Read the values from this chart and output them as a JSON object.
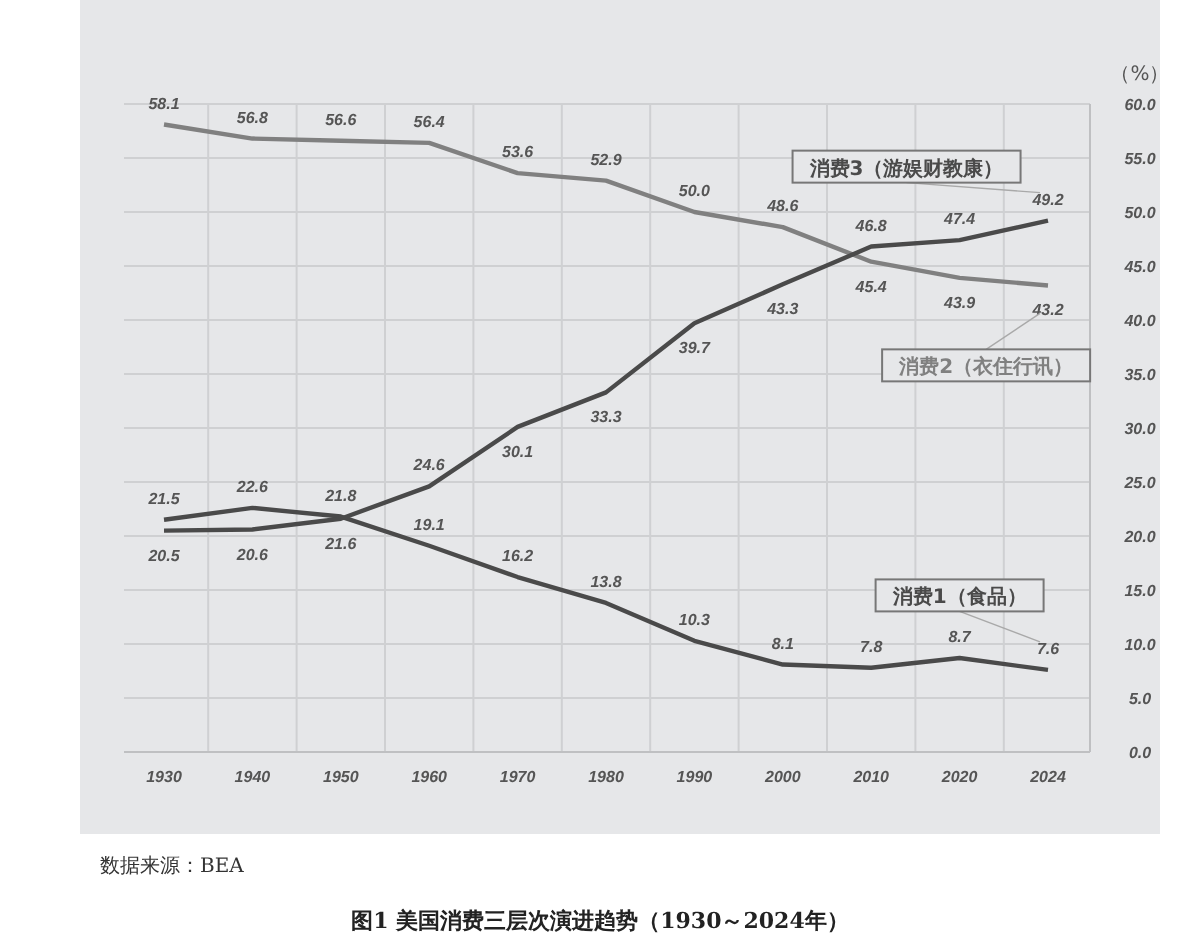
{
  "chart_data": {
    "type": "line",
    "title": "图1 美国消费三层次演进趋势（1930～2024年）",
    "ylabel": "（%）",
    "annotations": [
      "数据来源：BEA"
    ],
    "categories": [
      "1930",
      "1940",
      "1950",
      "1960",
      "1970",
      "1980",
      "1990",
      "2000",
      "2010",
      "2020",
      "2024"
    ],
    "series": [
      {
        "name": "消费1（食品）",
        "color": "#4a4a4a",
        "values": [
          21.5,
          22.6,
          21.8,
          19.1,
          16.2,
          13.8,
          10.3,
          8.1,
          7.8,
          8.7,
          7.6
        ],
        "value_labels": [
          "21.5",
          "22.6",
          "21.8",
          "19.1",
          "16.2",
          "13.8",
          "10.3",
          "8.1",
          "7.8",
          "8.7",
          "7.6"
        ]
      },
      {
        "name": "消费2（衣住行讯）",
        "color": "#808080",
        "values": [
          58.1,
          56.8,
          56.6,
          56.4,
          53.6,
          52.9,
          50.0,
          48.6,
          45.4,
          43.9,
          43.2
        ],
        "value_labels": [
          "58.1",
          "56.8",
          "56.6",
          "56.4",
          "53.6",
          "52.9",
          "50.0",
          "48.6",
          "45.4",
          "43.9",
          "43.2"
        ]
      },
      {
        "name": "消费3（游娱财教康）",
        "color": "#4a4a4a",
        "values": [
          20.5,
          20.6,
          21.6,
          24.6,
          30.1,
          33.3,
          39.7,
          43.3,
          46.8,
          47.4,
          49.2
        ],
        "value_labels": [
          "20.5",
          "20.6",
          "21.6",
          "24.6",
          "30.1",
          "33.3",
          "39.7",
          "43.3",
          "46.8",
          "47.4",
          "49.2"
        ]
      }
    ],
    "ylim": [
      0,
      60
    ],
    "yticks": [
      {
        "value": 0,
        "label": "0.0"
      },
      {
        "value": 5,
        "label": "5.0"
      },
      {
        "value": 10,
        "label": "10.0"
      },
      {
        "value": 15,
        "label": "15.0"
      },
      {
        "value": 20,
        "label": "20.0"
      },
      {
        "value": 25,
        "label": "25.0"
      },
      {
        "value": 30,
        "label": "30.0"
      },
      {
        "value": 35,
        "label": "35.0"
      },
      {
        "value": 40,
        "label": "40.0"
      },
      {
        "value": 45,
        "label": "45.0"
      },
      {
        "value": 50,
        "label": "50.0"
      },
      {
        "value": 55,
        "label": "55.0"
      },
      {
        "value": 60,
        "label": "60.0"
      }
    ],
    "grid": true,
    "legend": false,
    "marker": "none",
    "line_style": "solid"
  }
}
